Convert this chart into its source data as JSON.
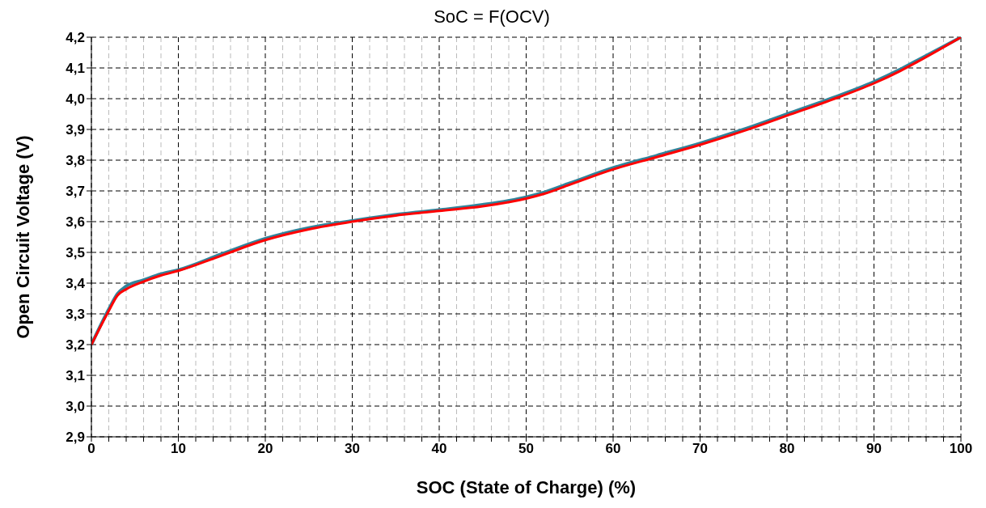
{
  "chart_data": {
    "type": "line",
    "title": "SoC = F(OCV)",
    "xlabel": "SOC (State of Charge) (%)",
    "ylabel": "Open Circuit Voltage (V)",
    "xlim": [
      0,
      100
    ],
    "xticks": [
      0,
      {
        "value": 2,
        "label": null
      },
      {
        "value": 4,
        "label": null
      },
      {
        "value": 6,
        "label": null
      },
      {
        "value": 8,
        "label": null
      },
      10,
      {
        "value": 12,
        "label": null
      },
      {
        "value": 14,
        "label": null
      },
      {
        "value": 16,
        "label": null
      },
      {
        "value": 18,
        "label": null
      },
      20,
      {
        "value": 22,
        "label": null
      },
      {
        "value": 24,
        "label": null
      },
      {
        "value": 26,
        "label": null
      },
      {
        "value": 28,
        "label": null
      },
      30,
      {
        "value": 32,
        "label": null
      },
      {
        "value": 34,
        "label": null
      },
      {
        "value": 36,
        "label": null
      },
      {
        "value": 38,
        "label": null
      },
      40,
      {
        "value": 42,
        "label": null
      },
      {
        "value": 44,
        "label": null
      },
      {
        "value": 46,
        "label": null
      },
      {
        "value": 48,
        "label": null
      },
      50,
      {
        "value": 52,
        "label": null
      },
      {
        "value": 54,
        "label": null
      },
      {
        "value": 56,
        "label": null
      },
      {
        "value": 58,
        "label": null
      },
      60,
      {
        "value": 62,
        "label": null
      },
      {
        "value": 64,
        "label": null
      },
      {
        "value": 66,
        "label": null
      },
      {
        "value": 68,
        "label": null
      },
      70,
      {
        "value": 72,
        "label": null
      },
      {
        "value": 74,
        "label": null
      },
      {
        "value": 76,
        "label": null
      },
      {
        "value": 78,
        "label": null
      },
      80,
      {
        "value": 82,
        "label": null
      },
      {
        "value": 84,
        "label": null
      },
      {
        "value": 86,
        "label": null
      },
      {
        "value": 88,
        "label": null
      },
      90,
      {
        "value": 92,
        "label": null
      },
      {
        "value": 94,
        "label": null
      },
      {
        "value": 96,
        "label": null
      },
      {
        "value": 98,
        "label": null
      },
      100
    ],
    "ylim": [
      2.9,
      4.2
    ],
    "yticks": [
      {
        "value": 2.9,
        "label": "2,9"
      },
      {
        "value": 3.0,
        "label": "3,0"
      },
      {
        "value": 3.1,
        "label": "3,1"
      },
      {
        "value": 3.2,
        "label": "3,2"
      },
      {
        "value": 3.3,
        "label": "3,3"
      },
      {
        "value": 3.4,
        "label": "3,4"
      },
      {
        "value": 3.5,
        "label": "3,5"
      },
      {
        "value": 3.6,
        "label": "3,6"
      },
      {
        "value": 3.7,
        "label": "3,7"
      },
      {
        "value": 3.8,
        "label": "3,8"
      },
      {
        "value": 3.9,
        "label": "3,9"
      },
      {
        "value": 4.0,
        "label": "4,0"
      },
      {
        "value": 4.1,
        "label": "4,1"
      },
      {
        "value": 4.2,
        "label": "4,2"
      }
    ],
    "grid": true,
    "marker": "none",
    "line_style": "solid",
    "x": [
      0,
      2,
      3,
      4,
      6,
      8,
      10,
      15,
      20,
      25,
      30,
      35,
      40,
      45,
      50,
      52,
      55,
      60,
      65,
      70,
      75,
      80,
      85,
      90,
      93,
      95,
      100
    ],
    "series": [
      {
        "color": "#31849b",
        "values": [
          3.2,
          3.315,
          3.365,
          3.39,
          3.41,
          3.43,
          3.443,
          3.495,
          3.545,
          3.58,
          3.603,
          3.623,
          3.638,
          3.655,
          3.68,
          3.695,
          3.725,
          3.775,
          3.815,
          3.855,
          3.9,
          3.95,
          4.0,
          4.055,
          4.095,
          4.125,
          4.2
        ]
      },
      {
        "color": "#ff0000",
        "values": [
          3.2,
          3.31,
          3.36,
          3.38,
          3.405,
          3.425,
          3.44,
          3.49,
          3.54,
          3.575,
          3.6,
          3.62,
          3.635,
          3.65,
          3.675,
          3.69,
          3.72,
          3.77,
          3.81,
          3.85,
          3.895,
          3.945,
          3.995,
          4.05,
          4.09,
          4.12,
          4.2
        ]
      }
    ]
  }
}
